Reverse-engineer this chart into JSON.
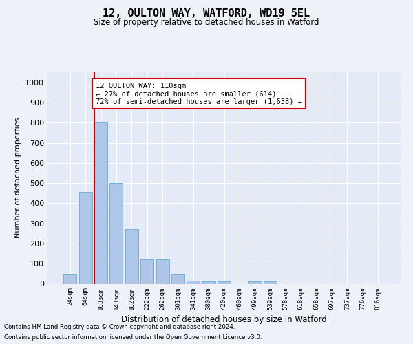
{
  "title1": "12, OULTON WAY, WATFORD, WD19 5EL",
  "title2": "Size of property relative to detached houses in Watford",
  "xlabel": "Distribution of detached houses by size in Watford",
  "ylabel": "Number of detached properties",
  "categories": [
    "24sqm",
    "64sqm",
    "103sqm",
    "143sqm",
    "182sqm",
    "222sqm",
    "262sqm",
    "301sqm",
    "341sqm",
    "380sqm",
    "420sqm",
    "460sqm",
    "499sqm",
    "539sqm",
    "578sqm",
    "618sqm",
    "658sqm",
    "697sqm",
    "737sqm",
    "776sqm",
    "816sqm"
  ],
  "values": [
    50,
    455,
    800,
    500,
    270,
    122,
    122,
    50,
    15,
    12,
    12,
    0,
    12,
    12,
    0,
    0,
    0,
    0,
    0,
    0,
    0
  ],
  "bar_color": "#aec6e8",
  "bar_edgecolor": "#7aafd4",
  "vline_color": "#cc0000",
  "vline_bin": 2,
  "annotation_text": "12 OULTON WAY: 110sqm\n← 27% of detached houses are smaller (614)\n72% of semi-detached houses are larger (1,638) →",
  "annotation_box_color": "#ffffff",
  "annotation_box_edgecolor": "#cc0000",
  "ylim": [
    0,
    1050
  ],
  "yticks": [
    0,
    100,
    200,
    300,
    400,
    500,
    600,
    700,
    800,
    900,
    1000
  ],
  "footnote1": "Contains HM Land Registry data © Crown copyright and database right 2024.",
  "footnote2": "Contains public sector information licensed under the Open Government Licence v3.0.",
  "bg_color": "#eef2f8",
  "plot_bg_color": "#e4eaf6"
}
